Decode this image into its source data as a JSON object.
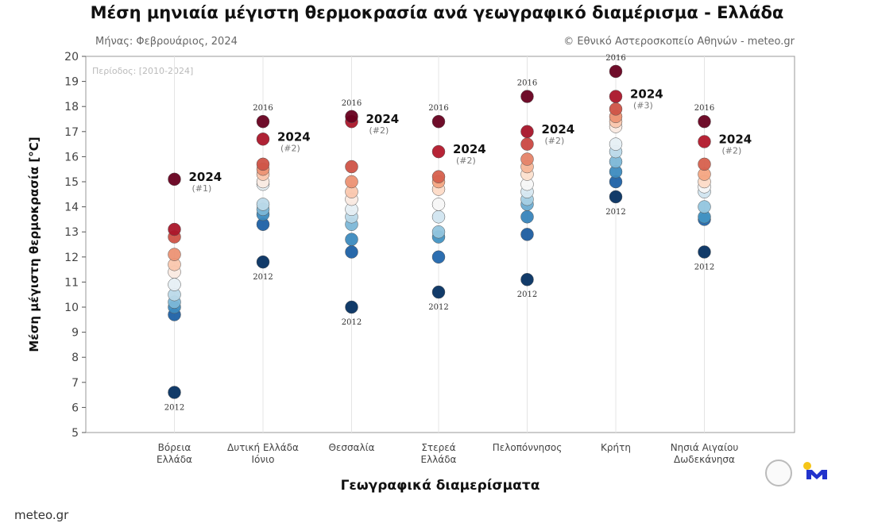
{
  "header": {
    "title": "Μέση μηνιαία μέγιστη θερμοκρασία ανά γεωγραφικό διαμέρισμα - Ελλάδα",
    "month": "Μήνας: Φεβρουάριος, 2024",
    "credit": "© Εθνικό Αστεροσκοπείο Αθηνών - meteo.gr"
  },
  "footer": {
    "source": "meteo.gr"
  },
  "chart_data": {
    "type": "scatter",
    "title": "Μέση μηνιαία μέγιστη θερμοκρασία ανά γεωγραφικό διαμέρισμα - Ελλάδα",
    "period_note": "Περίοδος: [2010-2024]",
    "xlabel": "Γεωγραφικά διαμερίσματα",
    "ylabel": "Μέση μέγιστη θερμοκρασία [°C]",
    "ylim": [
      5,
      20
    ],
    "yticks": [
      5,
      6,
      7,
      8,
      9,
      10,
      11,
      12,
      13,
      14,
      15,
      16,
      17,
      18,
      19,
      20
    ],
    "grid": "vertical",
    "categories": [
      {
        "name": [
          "Βόρεια",
          "Ελλάδα"
        ],
        "values": [
          15.1,
          13.1,
          12.8,
          12.1,
          11.7,
          11.4,
          10.9,
          10.5,
          10.2,
          10.0,
          9.7,
          6.6
        ],
        "label_2024": "2024",
        "rank_2024": "(#1)",
        "max_year": null,
        "min_year": "2012"
      },
      {
        "name": [
          "Δυτική Ελλάδα",
          "Ιόνιο"
        ],
        "values": [
          17.4,
          16.7,
          15.7,
          15.5,
          15.3,
          15.0,
          14.9,
          14.1,
          13.9,
          13.7,
          13.3,
          11.8
        ],
        "label_2024": "2024",
        "rank_2024": "(#2)",
        "max_year": "2016",
        "min_year": "2012"
      },
      {
        "name": [
          "Θεσσαλία"
        ],
        "values": [
          17.6,
          17.4,
          15.6,
          15.0,
          14.6,
          14.3,
          13.9,
          13.6,
          13.3,
          12.7,
          12.2,
          10.0
        ],
        "label_2024": "2024",
        "rank_2024": "(#2)",
        "max_year": "2016",
        "min_year": "2012"
      },
      {
        "name": [
          "Στερεά",
          "Ελλάδα"
        ],
        "values": [
          17.4,
          16.2,
          15.2,
          15.0,
          14.7,
          14.1,
          13.6,
          13.0,
          12.8,
          12.0,
          10.6
        ],
        "label_2024": "2024",
        "rank_2024": "(#2)",
        "max_year": "2016",
        "min_year": "2012"
      },
      {
        "name": [
          "Πελοπόννησος"
        ],
        "values": [
          18.4,
          17.0,
          16.5,
          15.9,
          15.6,
          15.3,
          14.9,
          14.6,
          14.3,
          14.1,
          13.6,
          12.9,
          11.1
        ],
        "label_2024": "2024",
        "rank_2024": "(#2)",
        "max_year": "2016",
        "min_year": "2012"
      },
      {
        "name": [
          "Κρήτη"
        ],
        "values": [
          19.4,
          18.4,
          17.9,
          17.6,
          17.4,
          17.2,
          16.5,
          16.2,
          15.8,
          15.4,
          15.0,
          14.4
        ],
        "label_2024": "2024",
        "rank_2024": "(#3)",
        "max_year": "2016",
        "min_year": "2012"
      },
      {
        "name": [
          "Νησιά Αιγαίου",
          "Δωδεκάνησα"
        ],
        "values": [
          17.4,
          16.6,
          15.7,
          15.3,
          15.0,
          14.8,
          14.6,
          14.0,
          13.6,
          13.5,
          12.2
        ],
        "label_2024": "2024",
        "rank_2024": "(#2)",
        "max_year": "2016",
        "min_year": "2012"
      }
    ],
    "colors": {
      "warm": "#67001f",
      "cold": "#053061"
    }
  }
}
